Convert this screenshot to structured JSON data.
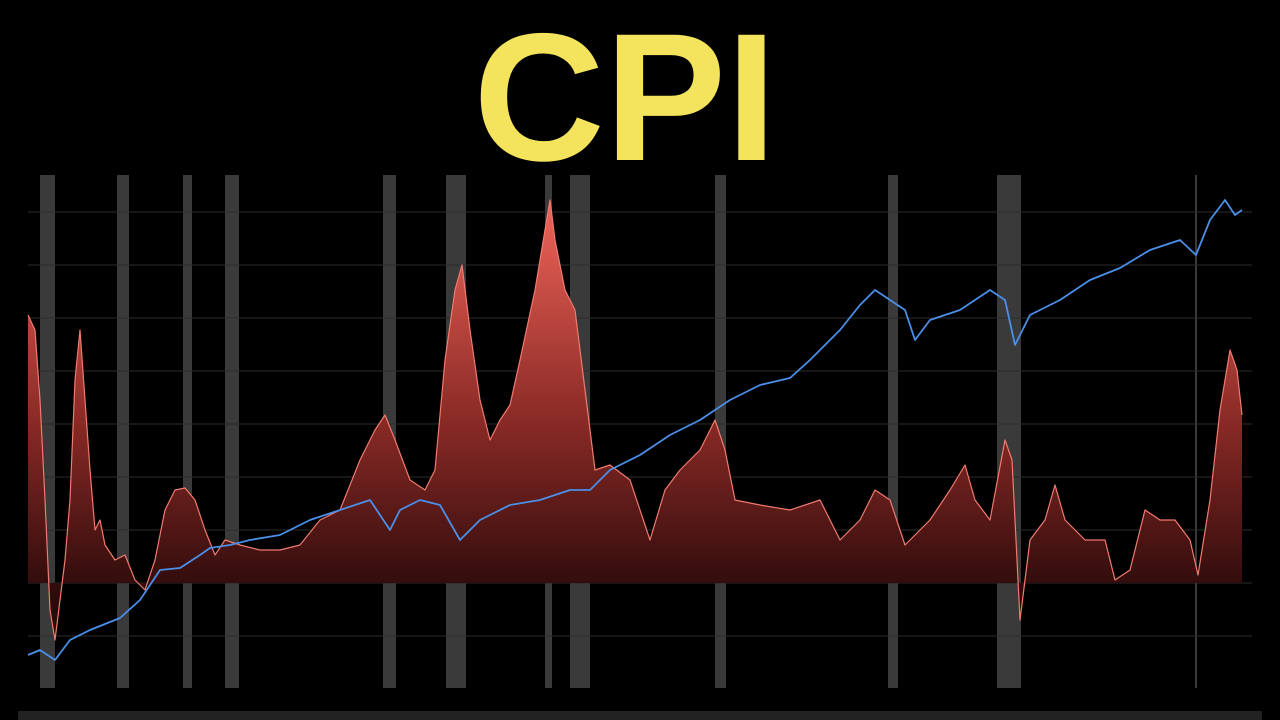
{
  "chart_data": {
    "type": "area",
    "title": "CPI",
    "xlim": [
      0,
      1214
    ],
    "ylim": [
      -105,
      408
    ],
    "yticks": [
      -53,
      0,
      53,
      106,
      159,
      212,
      265,
      318,
      371
    ],
    "grid": true,
    "recessions": [
      [
        12,
        27
      ],
      [
        89,
        101
      ],
      [
        155,
        164
      ],
      [
        197,
        211
      ],
      [
        355,
        368
      ],
      [
        418,
        438
      ],
      [
        517,
        524
      ],
      [
        542,
        562
      ],
      [
        687,
        698
      ],
      [
        860,
        870
      ],
      [
        969,
        993
      ],
      [
        1167,
        1169
      ]
    ],
    "series": [
      {
        "color": "#f07a6e",
        "style": "area",
        "x": [
          0,
          7,
          12,
          17,
          22,
          27,
          32,
          37,
          42,
          47,
          52,
          57,
          62,
          67,
          72,
          77,
          87,
          97,
          107,
          117,
          127,
          137,
          147,
          157,
          167,
          177,
          187,
          197,
          212,
          232,
          252,
          272,
          292,
          312,
          332,
          347,
          357,
          367,
          382,
          397,
          407,
          417,
          427,
          434,
          442,
          452,
          462,
          472,
          482,
          492,
          507,
          517,
          522,
          527,
          537,
          547,
          557,
          567,
          582,
          602,
          622,
          637,
          652,
          672,
          687,
          697,
          707,
          732,
          762,
          792,
          812,
          832,
          847,
          862,
          877,
          902,
          922,
          937,
          947,
          962,
          977,
          984,
          992,
          1002,
          1017,
          1027,
          1037,
          1057,
          1077,
          1087,
          1102,
          1117,
          1132,
          1147,
          1162,
          1170,
          1182,
          1192,
          1202,
          1209,
          1214
        ],
        "values": [
          268,
          253,
          183,
          83,
          -27,
          -57,
          -17,
          23,
          83,
          203,
          253,
          183,
          113,
          53,
          63,
          38,
          23,
          28,
          3,
          -7,
          23,
          73,
          93,
          95,
          83,
          53,
          28,
          43,
          38,
          33,
          33,
          38,
          63,
          73,
          123,
          153,
          168,
          143,
          103,
          93,
          113,
          223,
          293,
          318,
          253,
          183,
          143,
          163,
          178,
          223,
          293,
          353,
          383,
          343,
          293,
          273,
          193,
          113,
          118,
          103,
          43,
          93,
          113,
          133,
          163,
          133,
          83,
          78,
          73,
          83,
          43,
          63,
          93,
          83,
          38,
          63,
          93,
          118,
          83,
          63,
          143,
          123,
          -37,
          43,
          63,
          98,
          63,
          43,
          43,
          3,
          13,
          73,
          63,
          63,
          43,
          8,
          83,
          173,
          233,
          213,
          168
        ]
      },
      {
        "color": "#4a8fe8",
        "style": "line",
        "x": [
          0,
          12,
          27,
          42,
          62,
          92,
          112,
          132,
          152,
          172,
          182,
          202,
          222,
          252,
          282,
          312,
          342,
          362,
          372,
          392,
          412,
          432,
          452,
          482,
          512,
          542,
          562,
          582,
          612,
          642,
          672,
          702,
          732,
          762,
          782,
          812,
          832,
          847,
          862,
          877,
          887,
          902,
          932,
          962,
          977,
          987,
          1002,
          1032,
          1062,
          1092,
          1122,
          1152,
          1168,
          1182,
          1197,
          1207,
          1214
        ],
        "values": [
          -72,
          -67,
          -77,
          -57,
          -47,
          -35,
          -17,
          13,
          15,
          28,
          35,
          38,
          43,
          48,
          63,
          73,
          83,
          53,
          73,
          83,
          78,
          43,
          63,
          78,
          83,
          93,
          93,
          113,
          128,
          148,
          163,
          183,
          198,
          205,
          223,
          253,
          278,
          293,
          283,
          273,
          243,
          263,
          273,
          293,
          283,
          238,
          268,
          283,
          303,
          315,
          333,
          343,
          328,
          363,
          383,
          368,
          373
        ]
      }
    ]
  }
}
